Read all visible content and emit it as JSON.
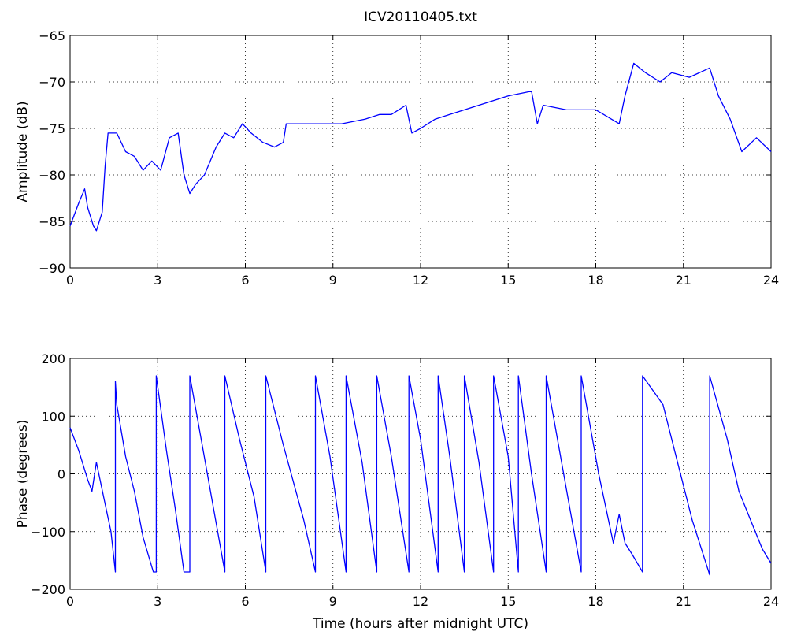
{
  "figure": {
    "title": "ICV20110405.txt",
    "line_color": "#0000ff"
  },
  "chart_data": [
    {
      "type": "line",
      "title": "ICV20110405.txt",
      "xlabel": "",
      "ylabel": "Amplitude (dB)",
      "xlim": [
        0,
        24
      ],
      "ylim": [
        -90,
        -65
      ],
      "xticks": [
        0,
        3,
        6,
        9,
        12,
        15,
        18,
        21,
        24
      ],
      "yticks": [
        -90,
        -85,
        -80,
        -75,
        -70,
        -65
      ],
      "grid": true,
      "series": [
        {
          "x": [
            0,
            0.3,
            0.5,
            0.6,
            0.8,
            0.9,
            1.1,
            1.2,
            1.3,
            1.6,
            1.9,
            2.2,
            2.5,
            2.8,
            3.1,
            3.4,
            3.7,
            3.9,
            4.1,
            4.3,
            4.6,
            5.0,
            5.3,
            5.6,
            5.9,
            6.2,
            6.6,
            7.0,
            7.3,
            7.4,
            7.8,
            8.5,
            9.3,
            10.1,
            10.6,
            11.0,
            11.5,
            11.7,
            12.0,
            12.5,
            13.0,
            14.0,
            15.0,
            15.8,
            16.0,
            16.2,
            17.0,
            18.0,
            18.8,
            19.0,
            19.3,
            19.7,
            20.2,
            20.6,
            21.2,
            21.9,
            22.2,
            22.6,
            23.0,
            23.5,
            24.0
          ],
          "y": [
            -85.5,
            -83,
            -81.5,
            -83.5,
            -85.5,
            -86,
            -84,
            -79,
            -75.5,
            -75.5,
            -77.5,
            -78,
            -79.5,
            -78.5,
            -79.5,
            -76,
            -75.5,
            -80,
            -82,
            -81,
            -80,
            -77,
            -75.5,
            -76,
            -74.5,
            -75.5,
            -76.5,
            -77,
            -76.5,
            -74.5,
            -74.5,
            -74.5,
            -74.5,
            -74,
            -73.5,
            -73.5,
            -72.5,
            -75.5,
            -75,
            -74,
            -73.5,
            -72.5,
            -71.5,
            -71,
            -74.5,
            -72.5,
            -73,
            -73,
            -74.5,
            -71.5,
            -68,
            -69,
            -70,
            -69,
            -69.5,
            -68.5,
            -71.5,
            -74,
            -77.5,
            -76,
            -77.5
          ]
        }
      ]
    },
    {
      "type": "line",
      "title": "",
      "xlabel": "Time (hours after midnight UTC)",
      "ylabel": "Phase (degrees)",
      "xlim": [
        0,
        24
      ],
      "ylim": [
        -200,
        200
      ],
      "xticks": [
        0,
        3,
        6,
        9,
        12,
        15,
        18,
        21,
        24
      ],
      "yticks": [
        -200,
        -100,
        0,
        100,
        200
      ],
      "grid": true,
      "series": [
        {
          "x": [
            0,
            0.3,
            0.6,
            0.75,
            0.9,
            1.15,
            1.4,
            1.55,
            1.55,
            1.6,
            1.9,
            2.2,
            2.5,
            2.85,
            2.95,
            2.95,
            3.3,
            3.6,
            3.9,
            4.1,
            4.1,
            4.7,
            5.3,
            5.3,
            5.8,
            6.3,
            6.7,
            6.7,
            7.3,
            8.0,
            8.4,
            8.4,
            8.9,
            9.45,
            9.45,
            10.0,
            10.5,
            10.5,
            11.0,
            11.6,
            11.6,
            12.0,
            12.6,
            12.6,
            13.0,
            13.5,
            13.5,
            14.0,
            14.5,
            14.5,
            15.0,
            15.35,
            15.35,
            15.8,
            16.3,
            16.3,
            16.9,
            17.5,
            17.5,
            18.1,
            18.6,
            18.8,
            19.0,
            19.25,
            19.6,
            19.6,
            20.3,
            20.7,
            21.3,
            21.9,
            21.9,
            22.5,
            22.9,
            23.3,
            23.7,
            24.0
          ],
          "y": [
            80,
            40,
            -10,
            -30,
            20,
            -40,
            -100,
            -170,
            160,
            120,
            30,
            -30,
            -110,
            -170,
            -170,
            170,
            40,
            -60,
            -170,
            -170,
            170,
            0,
            -170,
            170,
            60,
            -40,
            -170,
            170,
            50,
            -80,
            -170,
            170,
            30,
            -170,
            170,
            20,
            -170,
            170,
            30,
            -170,
            170,
            60,
            -170,
            170,
            30,
            -170,
            170,
            20,
            -170,
            170,
            30,
            -170,
            170,
            0,
            -170,
            170,
            0,
            -170,
            170,
            0,
            -120,
            -70,
            -120,
            -140,
            -170,
            170,
            120,
            40,
            -80,
            -175,
            170,
            60,
            -30,
            -80,
            -130,
            -155
          ]
        }
      ]
    }
  ]
}
